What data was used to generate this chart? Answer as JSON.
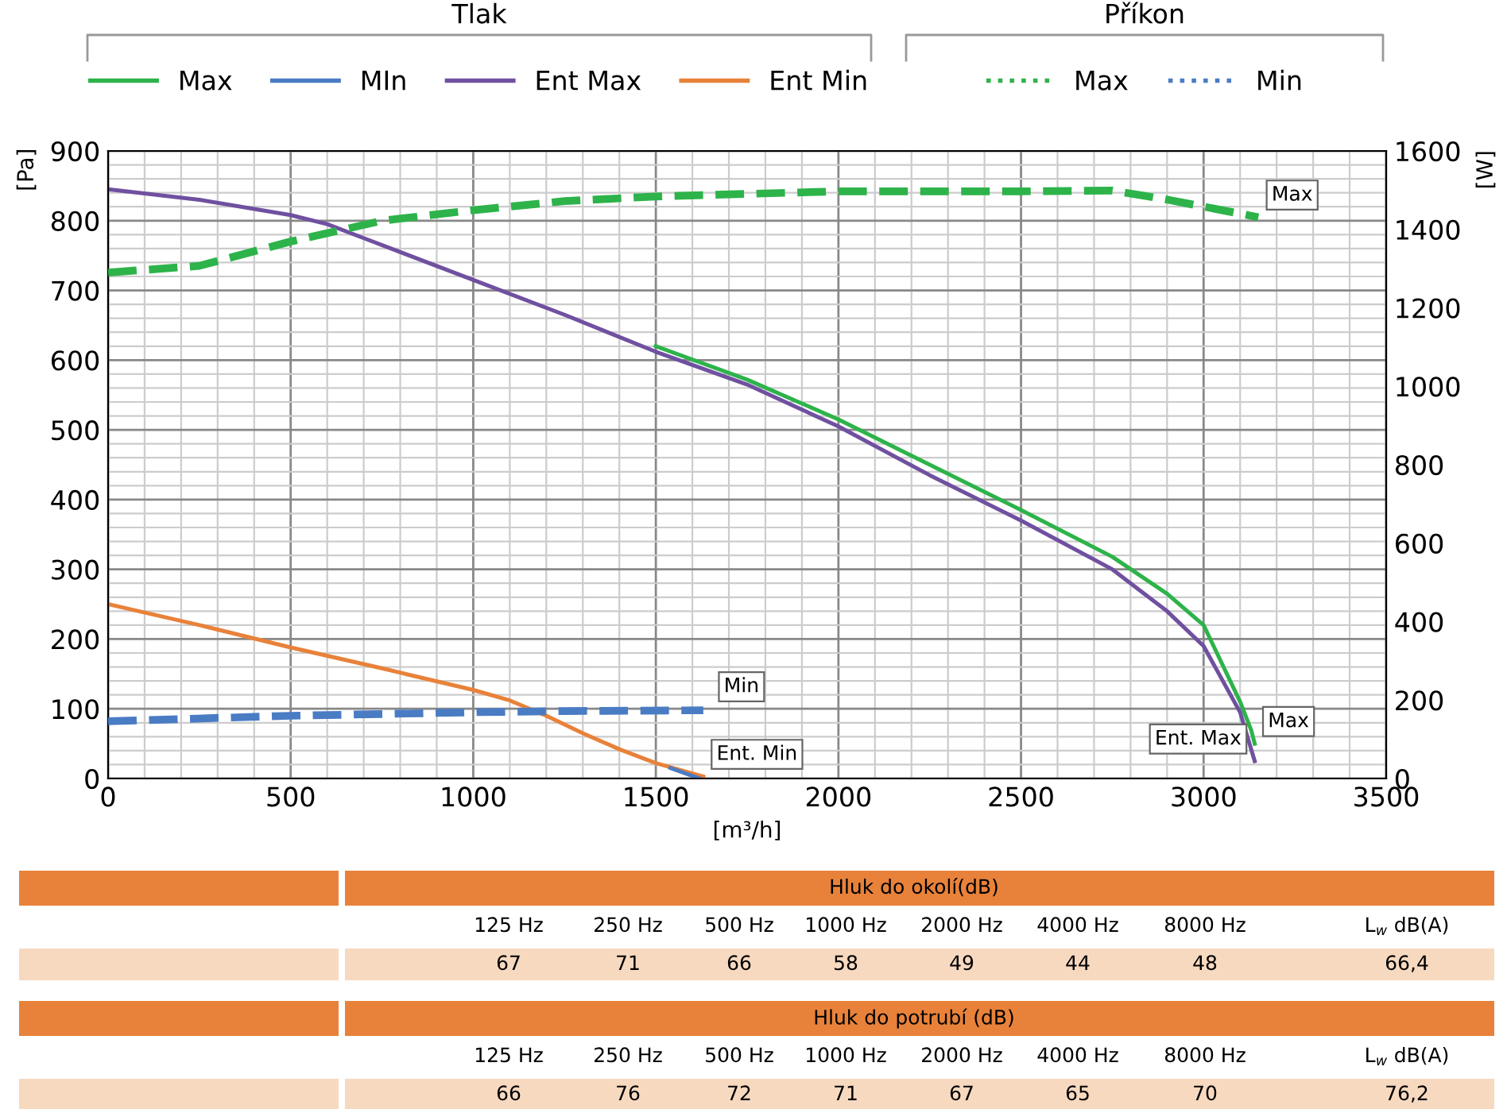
{
  "chart_data": {
    "type": "line",
    "xlabel": "[m³/h]",
    "ylabel": "[Pa]",
    "y2label": "[W]",
    "xlim": [
      0,
      3500
    ],
    "xticks": [
      0,
      500,
      1000,
      1500,
      2000,
      2500,
      3000,
      3500
    ],
    "ylim": [
      0,
      900
    ],
    "yticks": [
      0,
      100,
      200,
      300,
      400,
      500,
      600,
      700,
      800,
      900
    ],
    "y2lim": [
      0,
      1600
    ],
    "y2ticks": [
      0,
      200,
      400,
      600,
      800,
      1000,
      1200,
      1400,
      1600
    ],
    "grid": true,
    "legend": "top",
    "series": [
      {
        "name": "Max",
        "color": "#2db34a",
        "line_style": "solid",
        "x": [
          1500,
          1750,
          2000,
          2250,
          2500,
          2750,
          2900,
          3000,
          3100,
          3130,
          3140
        ],
        "values": [
          620,
          572,
          515,
          450,
          385,
          318,
          265,
          220,
          110,
          70,
          50
        ]
      },
      {
        "name": "MIn",
        "color": "#4a7cc4",
        "line_style": "solid",
        "x": [
          1540,
          1620
        ],
        "values": [
          15,
          0
        ]
      },
      {
        "name": "Ent Max",
        "color": "#7050a0",
        "line_style": "solid",
        "x": [
          0,
          250,
          500,
          600,
          700,
          1000,
          1250,
          1500,
          1750,
          2000,
          2250,
          2500,
          2750,
          2900,
          3000,
          3100,
          3140
        ],
        "values": [
          845,
          830,
          808,
          795,
          775,
          715,
          665,
          612,
          565,
          505,
          435,
          370,
          300,
          240,
          190,
          95,
          25
        ]
      },
      {
        "name": "Ent Min",
        "color": "#e8823a",
        "line_style": "solid",
        "x": [
          0,
          250,
          500,
          750,
          1000,
          1100,
          1200,
          1300,
          1400,
          1500,
          1630
        ],
        "values": [
          250,
          220,
          188,
          158,
          127,
          112,
          90,
          65,
          42,
          22,
          3
        ]
      },
      {
        "name": "Max",
        "color": "#2db34a",
        "line_style": "dashed",
        "axis": "y2",
        "x": [
          0,
          250,
          500,
          750,
          1000,
          1250,
          1500,
          2000,
          2500,
          2750,
          2900,
          3000,
          3150
        ],
        "values": [
          1290,
          1307,
          1369,
          1422,
          1449,
          1472,
          1484,
          1497,
          1497,
          1499,
          1476,
          1458,
          1431
        ]
      },
      {
        "name": "Min",
        "color": "#4a7cc4",
        "line_style": "dashed",
        "axis": "y2",
        "x": [
          0,
          500,
          1000,
          1250,
          1630
        ],
        "values": [
          146,
          160,
          169,
          172,
          174
        ]
      }
    ],
    "annotations": [
      "Tlak",
      "Příkon",
      "Hluk do okolí(dB)",
      "125 Hz",
      "250 Hz",
      "500 Hz",
      "1000 Hz",
      "2000 Hz",
      "4000 Hz",
      "8000 Hz",
      "L$_{w}$ dB(A)",
      "67",
      "71",
      "66",
      "58",
      "49",
      "44",
      "48",
      "66,4",
      "Hluk do potrubí (dB)",
      "125 Hz",
      "250 Hz",
      "500 Hz",
      "1000 Hz",
      "2000 Hz",
      "4000 Hz",
      "8000 Hz",
      "L$_{w}$ dB(A)",
      "66",
      "76",
      "72",
      "71",
      "67",
      "65",
      "70",
      "76,2",
      {
        "text": "Min",
        "x": 1650,
        "y": 100
      },
      {
        "text": "Ent. Min",
        "x": 1630,
        "y": 3
      },
      {
        "text": "Max",
        "x": 3150,
        "y": 805
      },
      {
        "text": "Max",
        "x": 3140,
        "y": 50
      },
      {
        "text": "Ent. Max",
        "x": 3140,
        "y": 25
      }
    ]
  }
}
